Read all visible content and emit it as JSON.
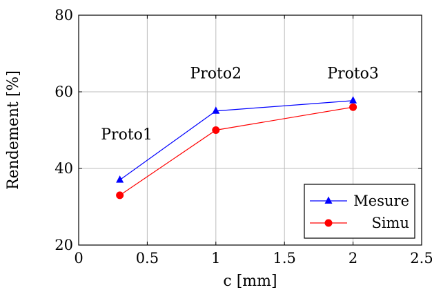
{
  "chart_data": {
    "type": "line",
    "xlabel": "c [mm]",
    "ylabel": "Rendement [%]",
    "xlim": [
      0,
      2.5
    ],
    "ylim": [
      20,
      80
    ],
    "xticks": [
      "0",
      "0.5",
      "1",
      "1.5",
      "2",
      "2.5"
    ],
    "yticks": [
      "20",
      "40",
      "60",
      "80"
    ],
    "grid": true,
    "legend_position": "bottom-right",
    "x": [
      0.3,
      1,
      2
    ],
    "series": [
      {
        "name": "Mesure",
        "values": [
          37,
          55,
          57.7
        ],
        "color": "#0000ff",
        "marker": "triangle"
      },
      {
        "name": "Simu",
        "values": [
          33,
          50,
          56
        ],
        "color": "#ff0000",
        "marker": "circle"
      }
    ],
    "annotations": [
      {
        "text": "Proto1",
        "x": 0.35,
        "y": 49
      },
      {
        "text": "Proto2",
        "x": 1,
        "y": 65
      },
      {
        "text": "Proto3",
        "x": 2,
        "y": 65
      }
    ]
  }
}
